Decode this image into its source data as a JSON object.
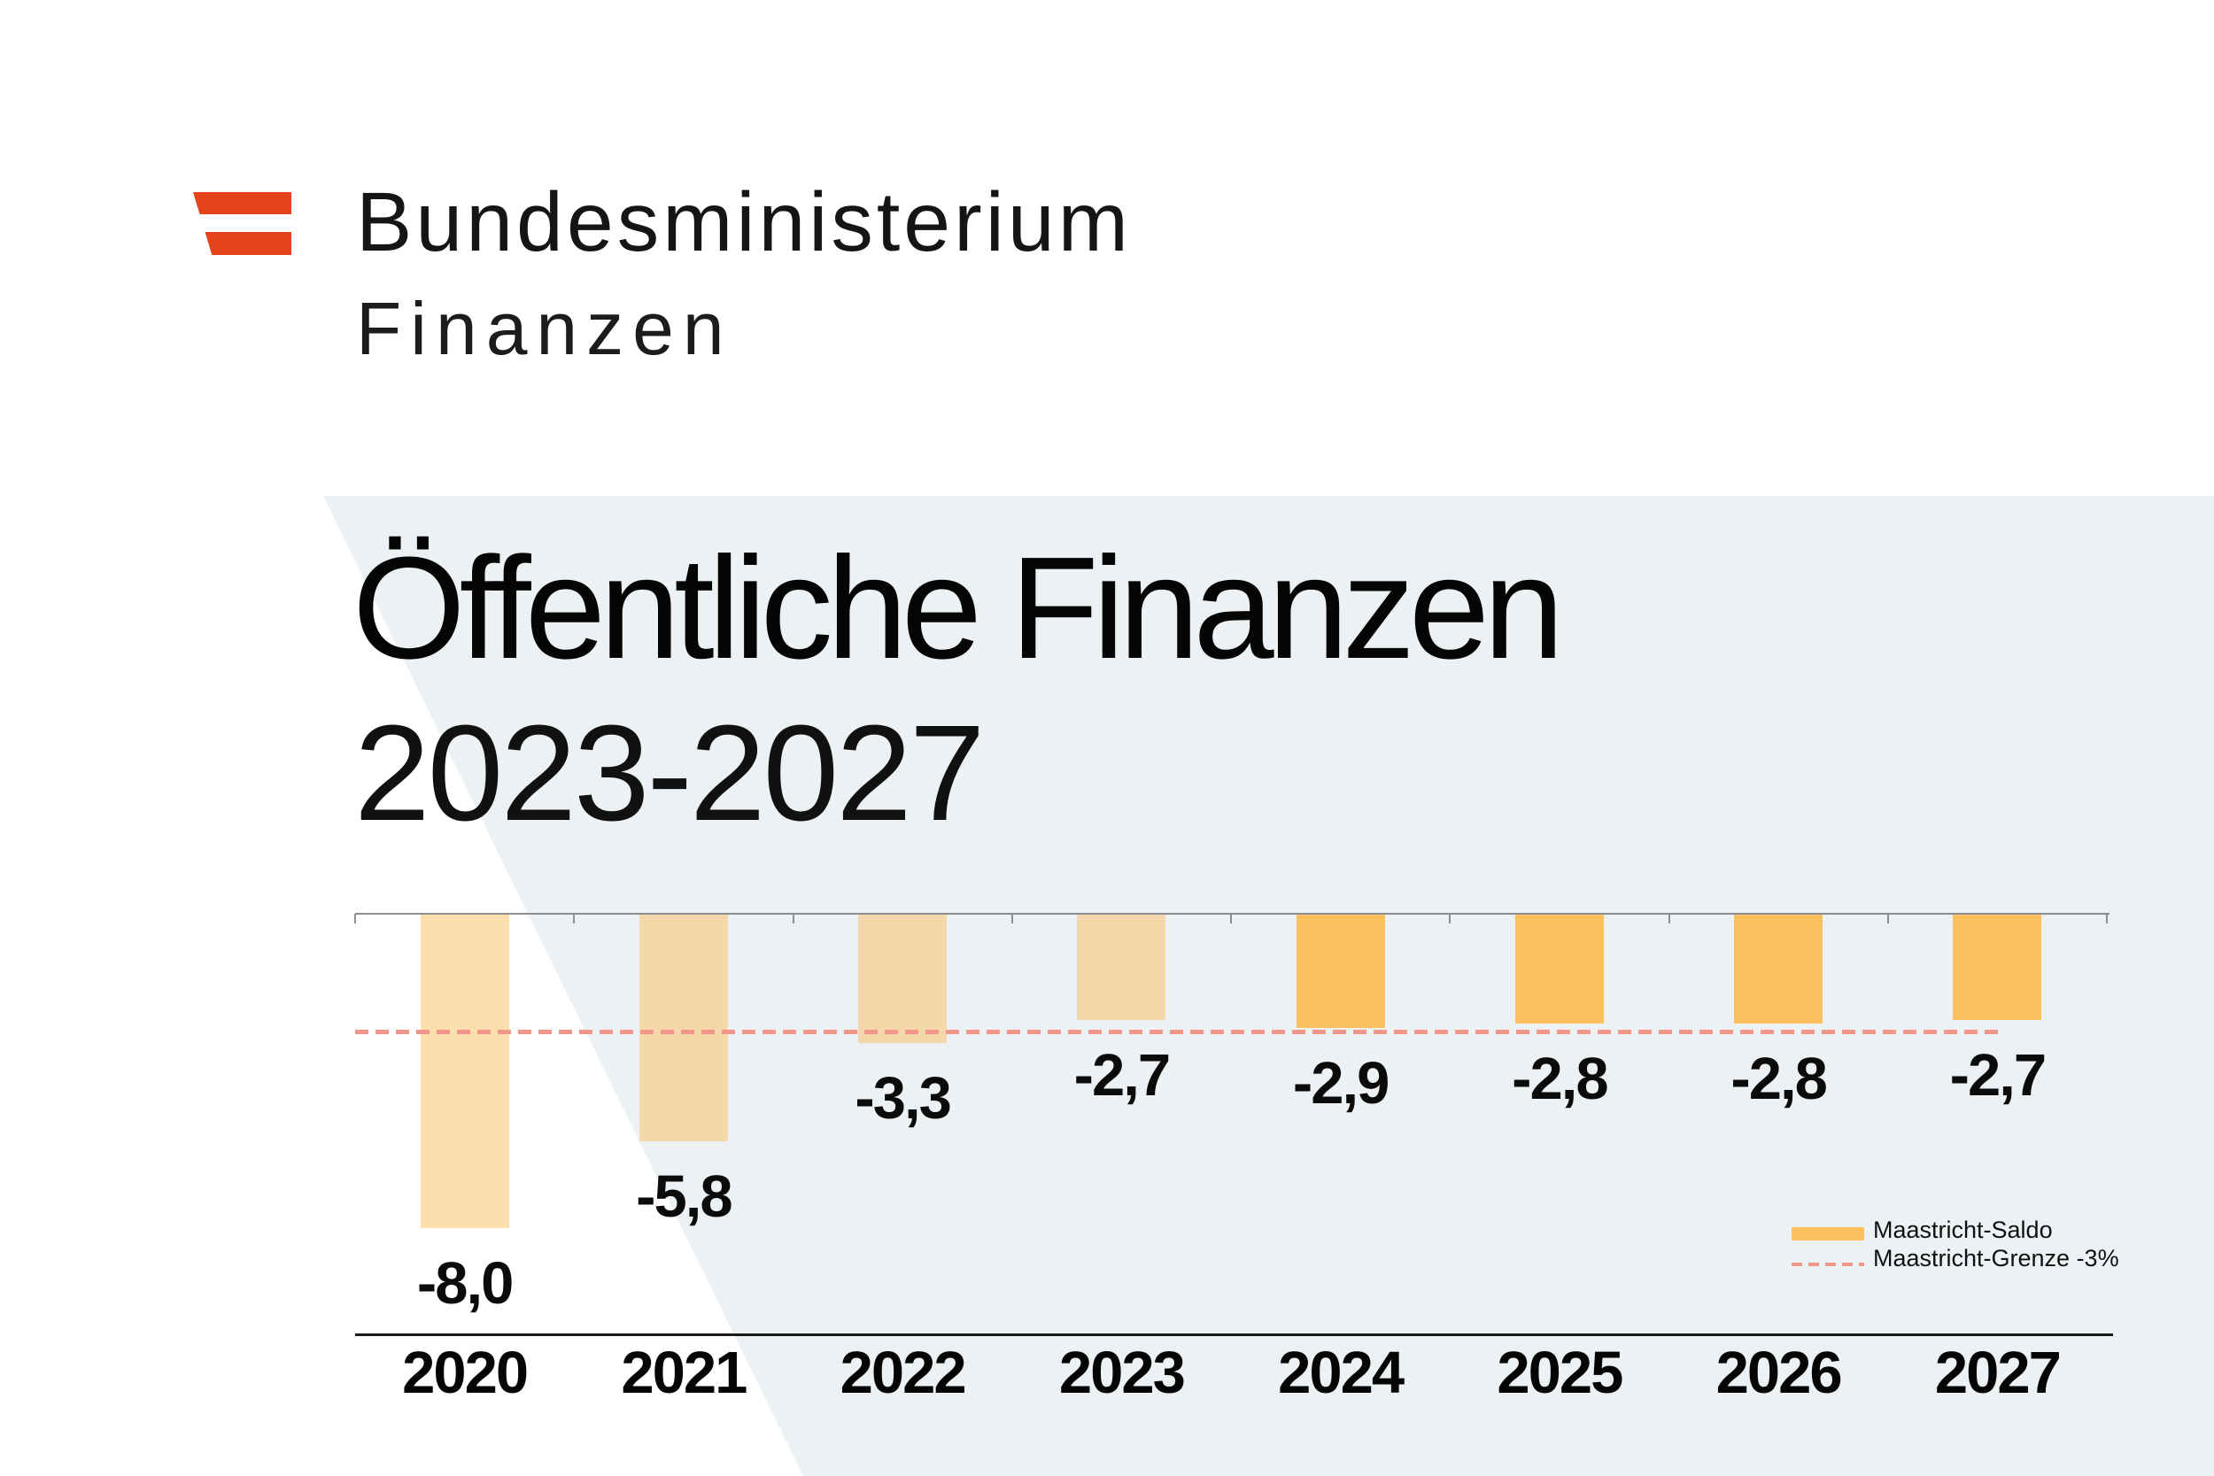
{
  "header": {
    "ministry": "Bundesministerium",
    "department": "Finanzen"
  },
  "title": {
    "line1": "Öffentliche Finanzen",
    "line2": "2023-2027"
  },
  "chart_data": {
    "type": "bar",
    "title": "Öffentliche Finanzen 2023-2027",
    "categories": [
      "2020",
      "2021",
      "2022",
      "2023",
      "2024",
      "2025",
      "2026",
      "2027"
    ],
    "series": [
      {
        "name": "Maastricht-Saldo",
        "values": [
          -8.0,
          -5.8,
          -3.3,
          -2.7,
          -2.9,
          -2.8,
          -2.8,
          -2.7
        ],
        "labels": [
          "-8,0",
          "-5,8",
          "-3,3",
          "-2,7",
          "-2,9",
          "-2,8",
          "-2,8",
          "-2,7"
        ]
      }
    ],
    "reference_line": {
      "name": "Maastricht-Grenze -3%",
      "value": -3
    },
    "muted_categories": [
      "2020",
      "2021",
      "2022",
      "2023"
    ],
    "ylim": [
      -9,
      0
    ],
    "xlabel": "",
    "ylabel": "",
    "grid": false,
    "legend_position": "bottom-right",
    "bars_direction": "down-from-zero-baseline"
  },
  "colors": {
    "bar_orange": "#FCC05E",
    "limit_salmon": "#F0968A",
    "background_wedge": "#ECF1F4",
    "logo_red": "#E5431C",
    "axis_gray": "#8E8E8E",
    "bottom_rule": "#1A1A1A",
    "text_black": "#0B0B0B"
  }
}
